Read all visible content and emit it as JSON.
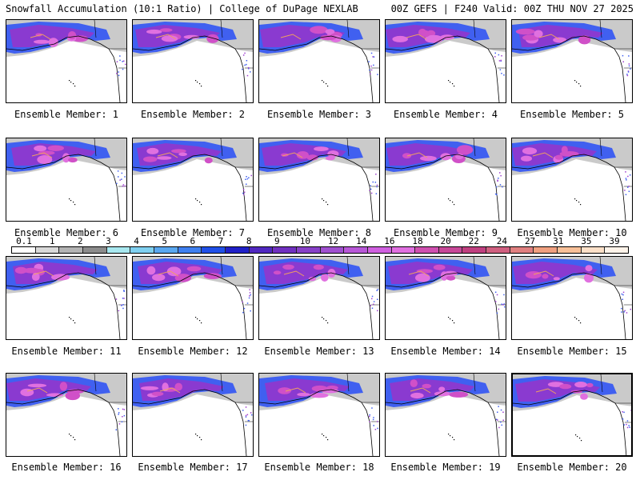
{
  "header": {
    "title_left": "Snowfall Accumulation (10:1 Ratio) | College of DuPage NEXLAB",
    "title_right": "00Z GEFS | F240 Valid: 00Z THU NOV 27 2025"
  },
  "panels": [
    {
      "label": "Ensemble Member: 1"
    },
    {
      "label": "Ensemble Member: 2"
    },
    {
      "label": "Ensemble Member: 3"
    },
    {
      "label": "Ensemble Member: 4"
    },
    {
      "label": "Ensemble Member: 5"
    },
    {
      "label": "Ensemble Member: 6"
    },
    {
      "label": "Ensemble Member: 7"
    },
    {
      "label": "Ensemble Member: 8"
    },
    {
      "label": "Ensemble Member: 9"
    },
    {
      "label": "Ensemble Member: 10"
    },
    {
      "label": "Ensemble Member: 11"
    },
    {
      "label": "Ensemble Member: 12"
    },
    {
      "label": "Ensemble Member: 13"
    },
    {
      "label": "Ensemble Member: 14"
    },
    {
      "label": "Ensemble Member: 15"
    },
    {
      "label": "Ensemble Member: 16"
    },
    {
      "label": "Ensemble Member: 17"
    },
    {
      "label": "Ensemble Member: 18"
    },
    {
      "label": "Ensemble Member: 19"
    },
    {
      "label": "Ensemble Member: 20"
    }
  ],
  "colorbar": {
    "labels": [
      "0.1",
      "1",
      "2",
      "3",
      "4",
      "5",
      "6",
      "7",
      "8",
      "9",
      "10",
      "12",
      "14",
      "16",
      "18",
      "20",
      "22",
      "24",
      "27",
      "31",
      "35",
      "39"
    ],
    "colors": [
      "#ffffff",
      "#d9d9d9",
      "#b3b3b3",
      "#8c8c8c",
      "#a8e8f0",
      "#7fd0f0",
      "#5aa8f0",
      "#3f80f0",
      "#2050e8",
      "#2020c8",
      "#5028c0",
      "#7030c0",
      "#8840c8",
      "#a050d0",
      "#b858d8",
      "#d060e0",
      "#e070e0",
      "#d050b0",
      "#c84898",
      "#c04080",
      "#d06080",
      "#e08080",
      "#f0a080",
      "#f8c098",
      "#fce0c8",
      "#fff4ea"
    ]
  }
}
